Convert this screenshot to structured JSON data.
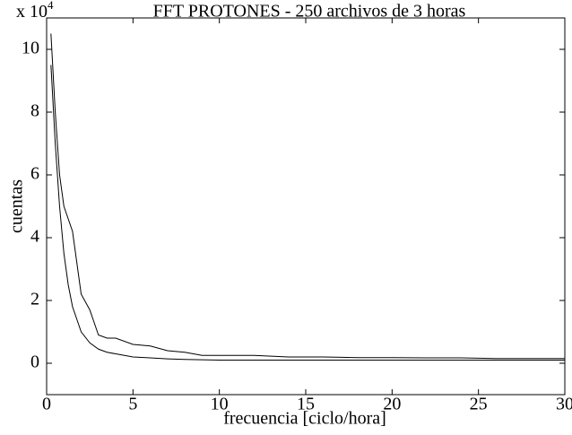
{
  "chart_data": {
    "type": "line",
    "title": "FFT  PROTONES - 250 archivos de 3 horas",
    "x_label": "frecuencia  [ciclo/hora]",
    "y_label": "cuentas",
    "y_multiplier": {
      "base": "x 10",
      "exponent": "4"
    },
    "x": [
      0.25,
      0.5,
      0.75,
      1,
      1.25,
      1.5,
      2,
      2.5,
      3,
      3.5,
      4,
      5,
      6,
      7,
      8,
      9,
      10,
      12,
      14,
      16,
      18,
      20,
      22,
      24,
      26,
      28,
      30
    ],
    "series": [
      {
        "color": "#000000",
        "values": [
          10.5,
          8,
          6,
          5,
          4.6,
          4.2,
          2.2,
          1.7,
          0.9,
          0.8,
          0.8,
          0.6,
          0.55,
          0.4,
          0.35,
          0.25,
          0.25,
          0.25,
          0.2,
          0.2,
          0.18,
          0.18,
          0.17,
          0.17,
          0.15,
          0.15,
          0.15
        ]
      },
      {
        "color": "#000000",
        "values": [
          9.5,
          7,
          5,
          3.5,
          2.5,
          1.8,
          1.0,
          0.65,
          0.45,
          0.35,
          0.3,
          0.2,
          0.17,
          0.14,
          0.12,
          0.11,
          0.1,
          0.1,
          0.1,
          0.1,
          0.1,
          0.1,
          0.1,
          0.1,
          0.1,
          0.1,
          0.1
        ]
      }
    ],
    "xlim": [
      0,
      30
    ],
    "xticks": [
      0,
      5,
      10,
      15,
      20,
      25,
      30
    ],
    "ylim": [
      -1,
      11
    ],
    "yticks": [
      0,
      2,
      4,
      6,
      8,
      10
    ]
  }
}
